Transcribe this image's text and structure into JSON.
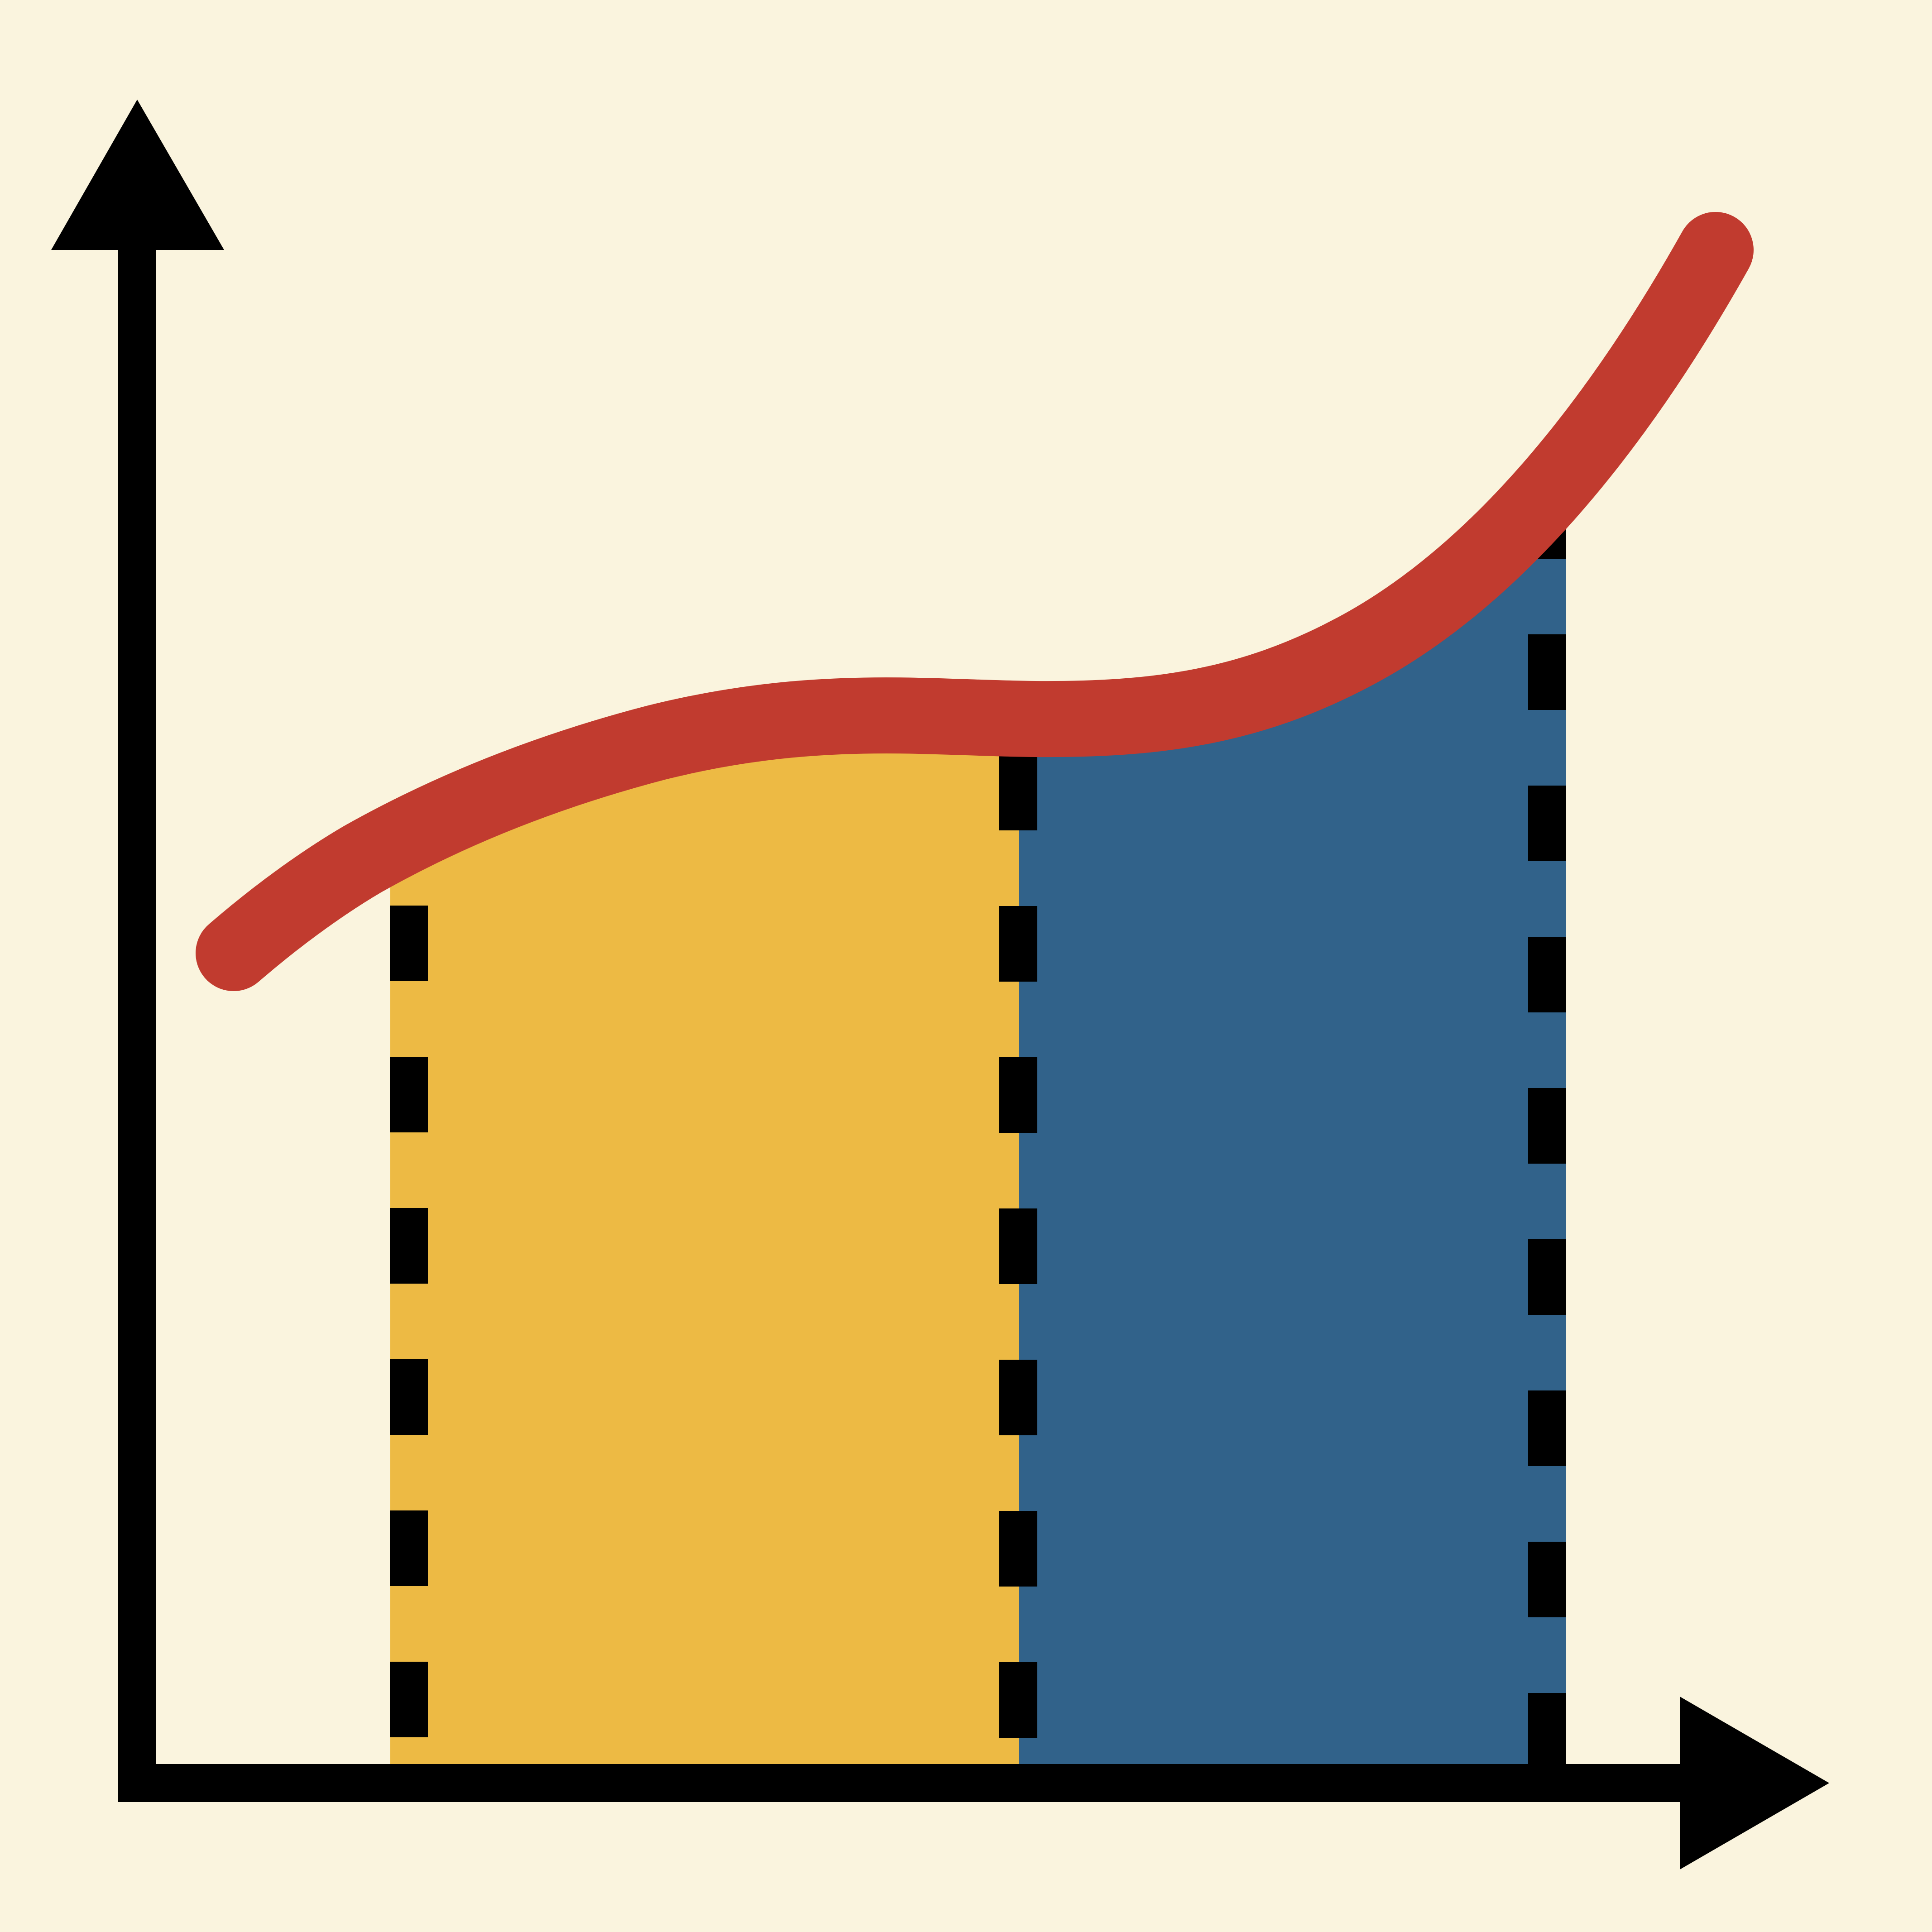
{
  "colors": {
    "background": "#FAF4DE",
    "region_left": "#EDBA44",
    "region_right": "#31628A",
    "curve": "#C13B2F",
    "axes": "#000000",
    "dividers": "#000000"
  },
  "icon": {
    "name": "area-under-curve-icon"
  }
}
